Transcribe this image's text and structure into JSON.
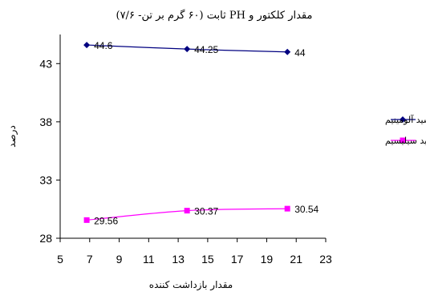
{
  "chart_data": {
    "type": "line",
    "title": "مقدار کلکتور و PH ثابت (۶۰ گرم بر تن- ۷/۶)",
    "xlabel": "مقدار بازداشت کننده",
    "ylabel": "درصد",
    "xlim": [
      5,
      23
    ],
    "ylim": [
      28,
      45.5
    ],
    "xticks": [
      5,
      7,
      9,
      11,
      13,
      15,
      17,
      19,
      21,
      23
    ],
    "yticks": [
      28,
      33,
      38,
      43
    ],
    "grid": false,
    "legend_position": "right",
    "series": [
      {
        "name": "اکسید آلومینیم",
        "color": "#000080",
        "marker": "diamond",
        "x": [
          6.8,
          13.6,
          20.4
        ],
        "y": [
          44.6,
          44.25,
          44
        ],
        "labels": [
          "44.6",
          "44.25",
          "44"
        ]
      },
      {
        "name": "اکسید سیلیسیم",
        "color": "#ff00ff",
        "marker": "square",
        "x": [
          6.8,
          13.6,
          20.4
        ],
        "y": [
          29.56,
          30.37,
          30.54
        ],
        "labels": [
          "29.56",
          "30.37",
          "30.54"
        ]
      }
    ]
  }
}
